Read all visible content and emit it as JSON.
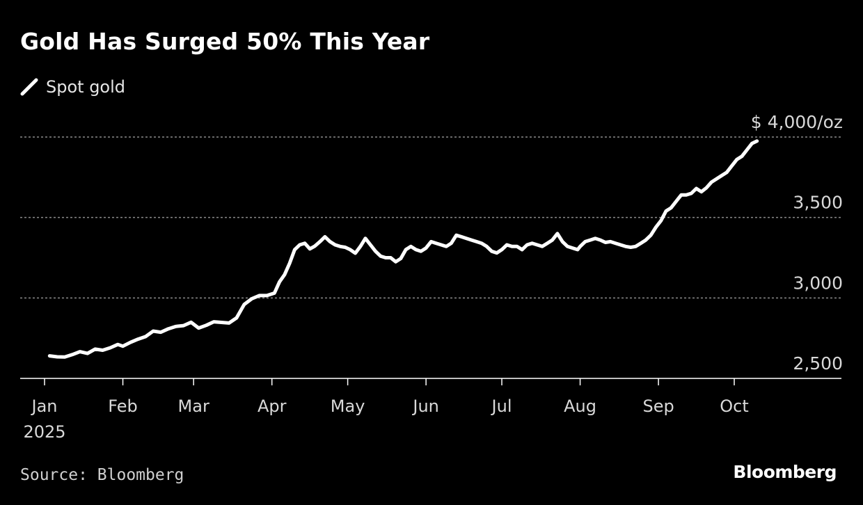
{
  "colors": {
    "background": "#000000",
    "line": "#ffffff",
    "grid": "#8c8c8c",
    "text": "#ffffff",
    "muted": "#d9d9d9"
  },
  "source_text": "Source: Bloomberg",
  "brand_text": "Bloomberg",
  "chart_data": {
    "type": "line",
    "title": "Gold Has Surged 50% This Year",
    "unit_label": "$ 4,000/oz",
    "legend": [
      {
        "name": "Spot gold"
      }
    ],
    "legend_placement": "top-left",
    "grid": true,
    "x_axis": {
      "type": "date",
      "range": [
        "2024-12-31",
        "2025-11-12"
      ],
      "ticks": [
        {
          "date": "2025-01-01",
          "label": "Jan",
          "sublabel": "2025"
        },
        {
          "date": "2025-02-01",
          "label": "Feb"
        },
        {
          "date": "2025-03-01",
          "label": "Mar"
        },
        {
          "date": "2025-04-01",
          "label": "Apr"
        },
        {
          "date": "2025-05-01",
          "label": "May"
        },
        {
          "date": "2025-06-01",
          "label": "Jun"
        },
        {
          "date": "2025-07-01",
          "label": "Jul"
        },
        {
          "date": "2025-08-01",
          "label": "Aug"
        },
        {
          "date": "2025-09-01",
          "label": "Sep"
        },
        {
          "date": "2025-10-01",
          "label": "Oct"
        }
      ]
    },
    "y_axis": {
      "range": [
        2500,
        4000
      ],
      "ticks": [
        {
          "value": 2500,
          "label": "2,500"
        },
        {
          "value": 3000,
          "label": "3,000"
        },
        {
          "value": 3500,
          "label": "3,500"
        },
        {
          "value": 4000,
          "label": "$ 4,000/oz"
        }
      ]
    },
    "series": [
      {
        "name": "Spot gold",
        "points": [
          [
            "2025-01-03",
            2640
          ],
          [
            "2025-01-06",
            2634
          ],
          [
            "2025-01-09",
            2633
          ],
          [
            "2025-01-12",
            2648
          ],
          [
            "2025-01-15",
            2666
          ],
          [
            "2025-01-18",
            2655
          ],
          [
            "2025-01-21",
            2682
          ],
          [
            "2025-01-24",
            2675
          ],
          [
            "2025-01-27",
            2690
          ],
          [
            "2025-01-30",
            2711
          ],
          [
            "2025-02-01",
            2700
          ],
          [
            "2025-02-04",
            2724
          ],
          [
            "2025-02-07",
            2744
          ],
          [
            "2025-02-10",
            2760
          ],
          [
            "2025-02-13",
            2794
          ],
          [
            "2025-02-16",
            2787
          ],
          [
            "2025-02-19",
            2808
          ],
          [
            "2025-02-22",
            2823
          ],
          [
            "2025-02-25",
            2828
          ],
          [
            "2025-02-28",
            2849
          ],
          [
            "2025-03-03",
            2813
          ],
          [
            "2025-03-06",
            2830
          ],
          [
            "2025-03-09",
            2852
          ],
          [
            "2025-03-12",
            2848
          ],
          [
            "2025-03-15",
            2844
          ],
          [
            "2025-03-18",
            2876
          ],
          [
            "2025-03-21",
            2959
          ],
          [
            "2025-03-24",
            2995
          ],
          [
            "2025-03-27",
            3015
          ],
          [
            "2025-03-30",
            3015
          ],
          [
            "2025-04-02",
            3030
          ],
          [
            "2025-04-04",
            3100
          ],
          [
            "2025-04-06",
            3145
          ],
          [
            "2025-04-08",
            3215
          ],
          [
            "2025-04-10",
            3300
          ],
          [
            "2025-04-12",
            3330
          ],
          [
            "2025-04-14",
            3340
          ],
          [
            "2025-04-16",
            3305
          ],
          [
            "2025-04-18",
            3322
          ],
          [
            "2025-04-20",
            3350
          ],
          [
            "2025-04-22",
            3380
          ],
          [
            "2025-04-24",
            3350
          ],
          [
            "2025-04-26",
            3330
          ],
          [
            "2025-04-28",
            3320
          ],
          [
            "2025-04-30",
            3315
          ],
          [
            "2025-05-02",
            3300
          ],
          [
            "2025-05-04",
            3278
          ],
          [
            "2025-05-06",
            3320
          ],
          [
            "2025-05-08",
            3370
          ],
          [
            "2025-05-10",
            3330
          ],
          [
            "2025-05-12",
            3290
          ],
          [
            "2025-05-14",
            3260
          ],
          [
            "2025-05-16",
            3250
          ],
          [
            "2025-05-18",
            3250
          ],
          [
            "2025-05-20",
            3225
          ],
          [
            "2025-05-22",
            3245
          ],
          [
            "2025-05-24",
            3300
          ],
          [
            "2025-05-26",
            3320
          ],
          [
            "2025-05-28",
            3300
          ],
          [
            "2025-05-30",
            3290
          ],
          [
            "2025-06-01",
            3310
          ],
          [
            "2025-06-03",
            3350
          ],
          [
            "2025-06-05",
            3340
          ],
          [
            "2025-06-07",
            3330
          ],
          [
            "2025-06-09",
            3320
          ],
          [
            "2025-06-11",
            3340
          ],
          [
            "2025-06-13",
            3390
          ],
          [
            "2025-06-15",
            3380
          ],
          [
            "2025-06-17",
            3370
          ],
          [
            "2025-06-19",
            3360
          ],
          [
            "2025-06-21",
            3350
          ],
          [
            "2025-06-23",
            3340
          ],
          [
            "2025-06-25",
            3320
          ],
          [
            "2025-06-27",
            3290
          ],
          [
            "2025-06-29",
            3280
          ],
          [
            "2025-07-01",
            3300
          ],
          [
            "2025-07-03",
            3330
          ],
          [
            "2025-07-05",
            3320
          ],
          [
            "2025-07-07",
            3320
          ],
          [
            "2025-07-09",
            3300
          ],
          [
            "2025-07-11",
            3330
          ],
          [
            "2025-07-13",
            3340
          ],
          [
            "2025-07-15",
            3330
          ],
          [
            "2025-07-17",
            3320
          ],
          [
            "2025-07-19",
            3340
          ],
          [
            "2025-07-21",
            3360
          ],
          [
            "2025-07-23",
            3400
          ],
          [
            "2025-07-25",
            3350
          ],
          [
            "2025-07-27",
            3320
          ],
          [
            "2025-07-29",
            3310
          ],
          [
            "2025-07-31",
            3300
          ],
          [
            "2025-08-01",
            3320
          ],
          [
            "2025-08-03",
            3350
          ],
          [
            "2025-08-05",
            3360
          ],
          [
            "2025-08-07",
            3370
          ],
          [
            "2025-08-09",
            3360
          ],
          [
            "2025-08-11",
            3345
          ],
          [
            "2025-08-13",
            3350
          ],
          [
            "2025-08-15",
            3340
          ],
          [
            "2025-08-17",
            3330
          ],
          [
            "2025-08-19",
            3320
          ],
          [
            "2025-08-21",
            3315
          ],
          [
            "2025-08-23",
            3320
          ],
          [
            "2025-08-25",
            3340
          ],
          [
            "2025-08-27",
            3360
          ],
          [
            "2025-08-29",
            3390
          ],
          [
            "2025-08-31",
            3440
          ],
          [
            "2025-09-02",
            3480
          ],
          [
            "2025-09-04",
            3540
          ],
          [
            "2025-09-06",
            3560
          ],
          [
            "2025-09-08",
            3600
          ],
          [
            "2025-09-10",
            3640
          ],
          [
            "2025-09-12",
            3640
          ],
          [
            "2025-09-14",
            3650
          ],
          [
            "2025-09-16",
            3680
          ],
          [
            "2025-09-18",
            3660
          ],
          [
            "2025-09-20",
            3685
          ],
          [
            "2025-09-22",
            3720
          ],
          [
            "2025-09-24",
            3740
          ],
          [
            "2025-09-26",
            3760
          ],
          [
            "2025-09-28",
            3780
          ],
          [
            "2025-09-30",
            3820
          ],
          [
            "2025-10-02",
            3860
          ],
          [
            "2025-10-04",
            3880
          ],
          [
            "2025-10-06",
            3920
          ],
          [
            "2025-10-08",
            3960
          ],
          [
            "2025-10-10",
            3975
          ]
        ]
      }
    ]
  }
}
